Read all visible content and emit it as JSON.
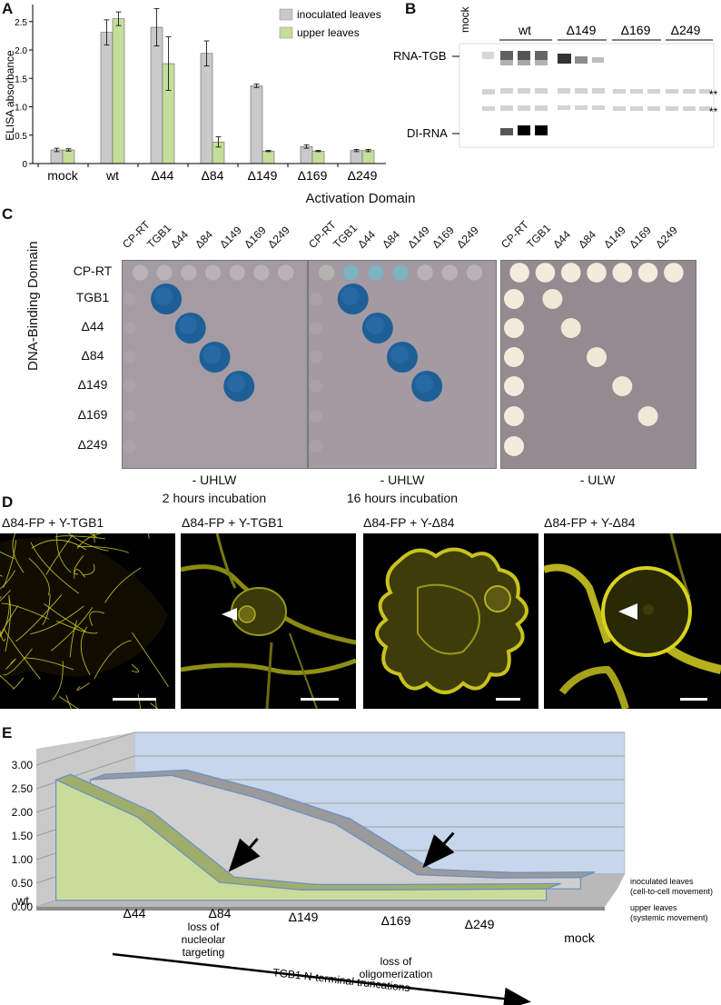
{
  "panels": {
    "a": "A",
    "b": "B",
    "c": "C",
    "d": "D",
    "e": "E"
  },
  "panel_a": {
    "ylabel": "ELISA absorbance",
    "yticks": [
      "0",
      "0.5",
      "1.0",
      "1.5",
      "2.0",
      "2.5"
    ],
    "legend": [
      "inoculated leaves",
      "upper leaves"
    ],
    "colors": {
      "inoculated": "#c9c9c9",
      "upper": "#c6dd9a"
    }
  },
  "chart_data": [
    {
      "type": "bar",
      "categories": [
        "mock",
        "wt",
        "Δ44",
        "Δ84",
        "Δ149",
        "Δ169",
        "Δ249"
      ],
      "series": [
        {
          "name": "inoculated leaves",
          "values": [
            0.24,
            2.31,
            2.4,
            1.94,
            1.37,
            0.3,
            0.23
          ],
          "errors": [
            0.03,
            0.22,
            0.33,
            0.22,
            0.03,
            0.03,
            0.02
          ]
        },
        {
          "name": "upper leaves",
          "values": [
            0.24,
            2.55,
            1.76,
            0.38,
            0.22,
            0.22,
            0.23
          ],
          "errors": [
            0.02,
            0.12,
            0.47,
            0.09,
            0.01,
            0.01,
            0.02
          ]
        }
      ],
      "ylabel": "ELISA absorbance",
      "ylim": [
        0,
        2.8
      ],
      "legend": "top-right"
    },
    {
      "type": "area",
      "categories": [
        "wt",
        "Δ44",
        "Δ84",
        "Δ149",
        "Δ169",
        "Δ249",
        "mock"
      ],
      "series": [
        {
          "name": "inoculated leaves",
          "values": [
            2.31,
            2.4,
            1.94,
            1.37,
            0.3,
            0.23,
            0.24
          ]
        },
        {
          "name": "upper leaves",
          "values": [
            2.55,
            1.76,
            0.38,
            0.22,
            0.22,
            0.23,
            0.24
          ]
        }
      ],
      "yticks": [
        "0.00",
        "0.50",
        "1.00",
        "1.50",
        "2.00",
        "2.50",
        "3.00"
      ],
      "ylim": [
        0,
        3
      ],
      "grid": true
    }
  ],
  "panel_b": {
    "lanes": [
      "mock",
      "wt",
      "Δ149",
      "Δ169",
      "Δ249"
    ],
    "label_top": "RNA-TGB",
    "label_bottom": "DI-RNA",
    "marker1": "**",
    "marker2": "**"
  },
  "panel_c": {
    "top_title": "Activation Domain",
    "side_title": "DNA-Binding Domain",
    "cols": [
      "CP-RT",
      "TGB1",
      "Δ44",
      "Δ84",
      "Δ149",
      "Δ169",
      "Δ249"
    ],
    "rows": [
      "CP-RT",
      "TGB1",
      "Δ44",
      "Δ84",
      "Δ149",
      "Δ169",
      "Δ249"
    ],
    "captions": [
      {
        "line1": "- UHLW",
        "line2": "2 hours incubation"
      },
      {
        "line1": "- UHLW",
        "line2": "16 hours incubation"
      },
      {
        "line1": "- ULW",
        "line2": ""
      }
    ]
  },
  "panel_d": {
    "titles": [
      "Δ84-FP + Y-TGB1",
      "Δ84-FP + Y-TGB1",
      "Δ84-FP + Y-Δ84",
      "Δ84-FP + Y-Δ84"
    ]
  },
  "panel_e": {
    "xlabels": [
      "wt",
      "Δ44",
      "Δ84",
      "Δ149",
      "Δ169",
      "Δ249",
      "mock"
    ],
    "note_d84": [
      "loss of",
      "nucleolar",
      "targeting"
    ],
    "note_d169": [
      "loss of",
      "oligomerization"
    ],
    "legend_inoc": [
      "inoculated leaves",
      "(cell-to-cell movement)"
    ],
    "legend_upper": [
      "upper leaves",
      "(systemic movement)"
    ],
    "arrow_label": "TGB1 N-terminal truncations",
    "colors": {
      "gray": "#cfcfcf",
      "green": "#c9dc9a",
      "wall": "#c7d6ea"
    }
  }
}
